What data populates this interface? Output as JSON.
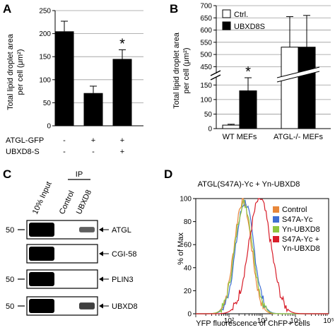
{
  "colors": {
    "black": "#000000",
    "white": "#ffffff",
    "control": "#e8873a",
    "s47a_yc": "#3f6fd4",
    "yn_ubxd8": "#8fc641",
    "combo": "#d81e2a"
  },
  "panels": {
    "A": "A",
    "B": "B",
    "C": "C",
    "D": "D"
  },
  "chart_data": [
    {
      "id": "A",
      "type": "bar",
      "ylabel_line1": "Total lipid droplet area",
      "ylabel_line2": "per cell (μm²)",
      "ylim": [
        0,
        250
      ],
      "yticks": [
        "0",
        "50",
        "100",
        "150",
        "200",
        "250"
      ],
      "ytick_values": [
        0,
        50,
        100,
        150,
        200,
        250
      ],
      "grid": true,
      "values": [
        205,
        71,
        145
      ],
      "errors": [
        22,
        15,
        20
      ],
      "significance": [
        "",
        "",
        "*"
      ],
      "row_labels": [
        "ATGL-GFP",
        "UBXD8-S"
      ],
      "row_values": [
        [
          "-",
          "+",
          "+"
        ],
        [
          "-",
          "-",
          "+"
        ]
      ]
    },
    {
      "id": "B",
      "type": "bar",
      "ylabel_line1": "Total lipid droplet area",
      "ylabel_line2": "per cell (μm²)",
      "yticks_lower": [
        "0",
        "50",
        "100",
        "150"
      ],
      "yticks_lower_values": [
        0,
        50,
        100,
        150
      ],
      "yticks_upper": [
        "450",
        "500",
        "550",
        "600",
        "650",
        "700"
      ],
      "yticks_upper_values": [
        450,
        500,
        550,
        600,
        650,
        700
      ],
      "lower_range": [
        0,
        175
      ],
      "upper_range": [
        425,
        700
      ],
      "grid": true,
      "legend_placement": "top-right",
      "series": [
        {
          "name": "Ctrl.",
          "color": "white",
          "values": [
            12,
            530
          ],
          "errors": [
            3,
            125
          ]
        },
        {
          "name": "UBXD8S",
          "color": "black",
          "values": [
            130,
            530
          ],
          "errors": [
            45,
            130
          ]
        }
      ],
      "categories": [
        "WT MEFs",
        "ATGL-/- MEFs"
      ],
      "significance": [
        "*",
        ""
      ]
    },
    {
      "id": "C",
      "type": "blot",
      "ip_label": "IP",
      "lane_labels": [
        "10% Input",
        "Control",
        "UBXD8"
      ],
      "mw_markers": [
        "50",
        "50",
        "50"
      ],
      "rows": [
        {
          "label": "ATGL",
          "mw": "50",
          "bands": [
            1.0,
            0,
            0.35
          ]
        },
        {
          "label": "CGI-58",
          "mw": "",
          "bands": [
            1.0,
            0,
            0
          ]
        },
        {
          "label": "PLIN3",
          "mw": "50",
          "bands": [
            1.0,
            0,
            0
          ]
        },
        {
          "label": "UBXD8",
          "mw": "50",
          "bands": [
            1.0,
            0,
            0.6
          ]
        }
      ]
    },
    {
      "id": "D",
      "type": "line",
      "title": "ATGL(S47A)-Yc + Yn-UBXD8",
      "ylabel": "% of Max",
      "xlabel": "YFP fluorescence of ChFP+ cells",
      "xscale": "log",
      "xlim": [
        10,
        100000
      ],
      "ylim": [
        0,
        100
      ],
      "yticks": [
        "0",
        "20",
        "40",
        "60",
        "80",
        "100"
      ],
      "ytick_values": [
        0,
        20,
        40,
        60,
        80,
        100
      ],
      "xticks": [
        "10²",
        "10³",
        "10⁴",
        "10⁵"
      ],
      "xtick_values": [
        100,
        1000,
        10000,
        100000
      ],
      "legend_placement": "right",
      "legend": [
        "Control",
        "S47A-Yc",
        "Yn-UBXD8",
        "S47A-Yc +",
        "Yn-UBXD8"
      ],
      "series": [
        {
          "name": "Control",
          "color": "control",
          "mode": 260,
          "sigma": 0.26,
          "peak": 98
        },
        {
          "name": "S47A-Yc",
          "color": "s47a_yc",
          "mode": 300,
          "sigma": 0.27,
          "peak": 97
        },
        {
          "name": "Yn-UBXD8",
          "color": "yn_ubxd8",
          "mode": 280,
          "sigma": 0.27,
          "peak": 96
        },
        {
          "name": "S47A-Yc + Yn-UBXD8",
          "color": "combo",
          "mode": 850,
          "sigma": 0.33,
          "peak": 100
        }
      ]
    }
  ]
}
